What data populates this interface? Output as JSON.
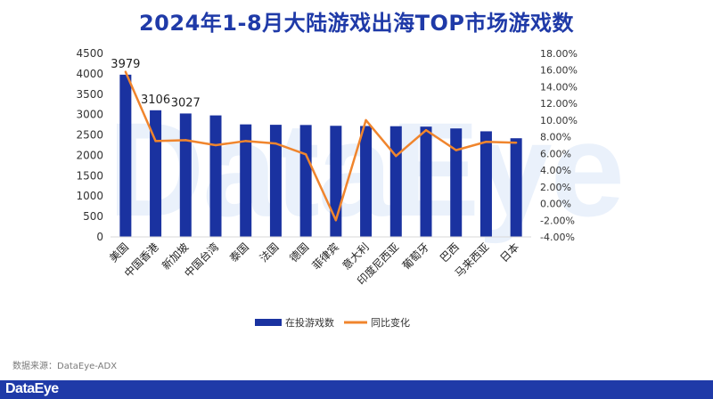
{
  "page": {
    "title": "2024年1-8月大陆游戏出海TOP市场游戏数",
    "watermark": "DataEye",
    "source": "数据来源：DataEye-ADX",
    "footer_logo": "DataEye"
  },
  "colors": {
    "bar": "#1a32a0",
    "line": "#f0852d",
    "title": "#1f3aa8",
    "footer": "#1f3aa8"
  },
  "chart_data": {
    "type": "bar+line",
    "title": "2024年1-8月大陆游戏出海TOP市场游戏数",
    "categories": [
      "美国",
      "中国香港",
      "新加坡",
      "中国台湾",
      "泰国",
      "法国",
      "德国",
      "菲律宾",
      "意大利",
      "印度尼西亚",
      "葡萄牙",
      "巴西",
      "马来西亚",
      "日本"
    ],
    "series": [
      {
        "name": "在投游戏数",
        "type": "bar",
        "axis": "left",
        "values": [
          3979,
          3106,
          3027,
          2980,
          2760,
          2750,
          2745,
          2725,
          2720,
          2715,
          2705,
          2660,
          2590,
          2420
        ]
      },
      {
        "name": "同比变化",
        "type": "line",
        "axis": "right",
        "unit": "%",
        "values": [
          15.8,
          7.5,
          7.6,
          7.0,
          7.5,
          7.2,
          5.9,
          -2.0,
          10.0,
          5.7,
          8.8,
          6.4,
          7.4,
          7.3
        ]
      }
    ],
    "data_labels": [
      {
        "index": 0,
        "text": "3979"
      },
      {
        "index": 1,
        "text": "3106"
      },
      {
        "index": 2,
        "text": "3027"
      }
    ],
    "y_left": {
      "min": 0,
      "max": 4500,
      "step": 500,
      "ticks": [
        "0",
        "500",
        "1000",
        "1500",
        "2000",
        "2500",
        "3000",
        "3500",
        "4000",
        "4500"
      ]
    },
    "y_right": {
      "min": -4,
      "max": 18,
      "step": 2,
      "ticks": [
        "-4.00%",
        "-2.00%",
        "0.00%",
        "2.00%",
        "4.00%",
        "6.00%",
        "8.00%",
        "10.00%",
        "12.00%",
        "14.00%",
        "16.00%",
        "18.00%"
      ]
    },
    "grid": false,
    "legend": {
      "position": "bottom",
      "items": [
        "在投游戏数",
        "同比变化"
      ]
    }
  }
}
